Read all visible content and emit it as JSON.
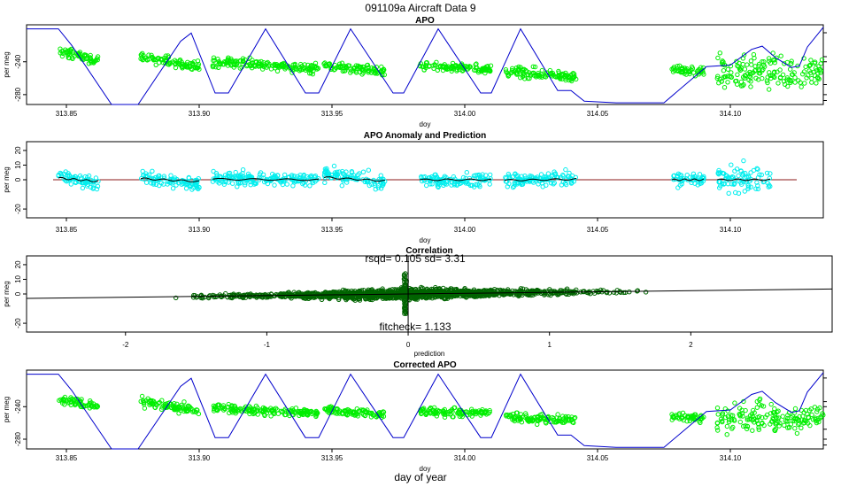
{
  "figure": {
    "title": "091109a   Aircraft Data 9",
    "bottom_label": "day of year"
  },
  "colors": {
    "apo_points": "#00ee00",
    "anomaly_points": "#00eeee",
    "correlation_points": "#006400",
    "altitude_line": "#0000cc",
    "anomaly_line": "#8b1a1a",
    "fit_line": "#000000"
  },
  "chart_data": [
    {
      "id": "apo",
      "type": "scatter",
      "title": "APO",
      "xlabel": "doy",
      "ylabel": "per meg",
      "xlim": [
        313.835,
        314.135
      ],
      "ylim": [
        -292,
        -195
      ],
      "xticks": [
        313.85,
        313.9,
        313.95,
        314.0,
        314.05,
        314.1
      ],
      "xtick_labels": [
        "313.85",
        "313.90",
        "313.95",
        "314.00",
        "314.05",
        "314.10"
      ],
      "yticks": [
        -240,
        -280
      ],
      "ytick_labels": [
        "-240",
        "-280"
      ],
      "right_axis": true,
      "segments": [
        {
          "x": [
            313.847,
            313.862
          ],
          "center": [
            -228,
            -238
          ],
          "spread": 7
        },
        {
          "x": [
            313.878,
            313.9
          ],
          "center": [
            -234,
            -246
          ],
          "spread": 7
        },
        {
          "x": [
            313.905,
            313.945
          ],
          "center": [
            -240,
            -248
          ],
          "spread": 7
        },
        {
          "x": [
            313.947,
            313.97
          ],
          "center": [
            -244,
            -252
          ],
          "spread": 7
        },
        {
          "x": [
            313.983,
            314.01
          ],
          "center": [
            -246,
            -249
          ],
          "spread": 6
        },
        {
          "x": [
            314.015,
            314.042
          ],
          "center": [
            -252,
            -258
          ],
          "spread": 8
        },
        {
          "x": [
            314.078,
            314.09
          ],
          "center": [
            -250,
            -252
          ],
          "spread": 6
        },
        {
          "x": [
            314.095,
            314.135
          ],
          "center": [
            -252,
            -252
          ],
          "spread": 22
        }
      ],
      "altitude_line": [
        [
          313.835,
          -200
        ],
        [
          313.847,
          -200
        ],
        [
          313.852,
          -220
        ],
        [
          313.867,
          -292
        ],
        [
          313.877,
          -292
        ],
        [
          313.893,
          -215
        ],
        [
          313.897,
          -205
        ],
        [
          313.906,
          -278
        ],
        [
          313.911,
          -278
        ],
        [
          313.925,
          -200
        ],
        [
          313.94,
          -278
        ],
        [
          313.945,
          -278
        ],
        [
          313.957,
          -200
        ],
        [
          313.973,
          -278
        ],
        [
          313.977,
          -278
        ],
        [
          313.99,
          -200
        ],
        [
          314.006,
          -278
        ],
        [
          314.01,
          -278
        ],
        [
          314.021,
          -200
        ],
        [
          314.035,
          -275
        ],
        [
          314.04,
          -275
        ],
        [
          314.045,
          -288
        ],
        [
          314.057,
          -290
        ],
        [
          314.075,
          -290
        ],
        [
          314.091,
          -246
        ],
        [
          314.1,
          -244
        ],
        [
          314.108,
          -225
        ],
        [
          314.112,
          -221
        ],
        [
          314.117,
          -235
        ],
        [
          314.123,
          -247
        ],
        [
          314.126,
          -245
        ],
        [
          314.129,
          -222
        ],
        [
          314.135,
          -198
        ]
      ]
    },
    {
      "id": "anomaly",
      "type": "scatter",
      "title": "APO Anomaly and Prediction",
      "xlabel": "doy",
      "ylabel": "per meg",
      "xlim": [
        313.835,
        314.135
      ],
      "ylim": [
        -26,
        26
      ],
      "xticks": [
        313.85,
        313.9,
        313.95,
        314.0,
        314.05,
        314.1
      ],
      "xtick_labels": [
        "313.85",
        "313.90",
        "313.95",
        "314.00",
        "314.05",
        "314.10"
      ],
      "yticks": [
        20,
        10,
        0,
        -20
      ],
      "ytick_labels": [
        "20",
        "10",
        "0",
        "-20"
      ],
      "segments": [
        {
          "x": [
            313.847,
            313.862
          ],
          "center": [
            3,
            -3
          ],
          "spread": 6
        },
        {
          "x": [
            313.878,
            313.9
          ],
          "center": [
            2,
            -3
          ],
          "spread": 6
        },
        {
          "x": [
            313.905,
            313.945
          ],
          "center": [
            1,
            0
          ],
          "spread": 5
        },
        {
          "x": [
            313.947,
            313.97
          ],
          "center": [
            4,
            -2
          ],
          "spread": 6
        },
        {
          "x": [
            313.983,
            314.01
          ],
          "center": [
            0,
            0
          ],
          "spread": 5
        },
        {
          "x": [
            314.015,
            314.042
          ],
          "center": [
            -1,
            1
          ],
          "spread": 6
        },
        {
          "x": [
            314.078,
            314.09
          ],
          "center": [
            0,
            0
          ],
          "spread": 5
        },
        {
          "x": [
            314.095,
            314.115
          ],
          "center": [
            0,
            0
          ],
          "spread": 11
        }
      ]
    },
    {
      "id": "correlation",
      "type": "scatter",
      "title": "Correlation",
      "xlabel": "prediction",
      "ylabel": "per meg",
      "stat_label": "rsqd= 0.105 sd= 3.31",
      "fit_label": "fitcheck= 1.133",
      "xlim": [
        -2.7,
        3.0
      ],
      "ylim": [
        -26,
        26
      ],
      "xticks": [
        -2,
        -1,
        0,
        1,
        2
      ],
      "xtick_labels": [
        "-2",
        "-1",
        "0",
        "1",
        "2"
      ],
      "yticks": [
        20,
        10,
        0,
        -20
      ],
      "ytick_labels": [
        "20",
        "10",
        "0",
        "-20"
      ],
      "slope": 1.133,
      "intercept": 0
    },
    {
      "id": "corrected",
      "type": "scatter",
      "title": "Corrected APO",
      "xlabel": "doy",
      "ylabel": "per meg",
      "xlim": [
        313.835,
        314.135
      ],
      "ylim": [
        -292,
        -195
      ],
      "xticks": [
        313.85,
        313.9,
        313.95,
        314.0,
        314.05,
        314.1
      ],
      "xtick_labels": [
        "313.85",
        "313.90",
        "313.95",
        "314.00",
        "314.05",
        "314.10"
      ],
      "yticks": [
        -240,
        -280
      ],
      "ytick_labels": [
        "-240",
        "-280"
      ],
      "right_axis": true,
      "segments": [
        {
          "x": [
            313.847,
            313.862
          ],
          "center": [
            -230,
            -240
          ],
          "spread": 7
        },
        {
          "x": [
            313.878,
            313.9
          ],
          "center": [
            -234,
            -246
          ],
          "spread": 7
        },
        {
          "x": [
            313.905,
            313.945
          ],
          "center": [
            -242,
            -248
          ],
          "spread": 6
        },
        {
          "x": [
            313.947,
            313.97
          ],
          "center": [
            -244,
            -250
          ],
          "spread": 6
        },
        {
          "x": [
            313.983,
            314.01
          ],
          "center": [
            -246,
            -248
          ],
          "spread": 6
        },
        {
          "x": [
            314.015,
            314.042
          ],
          "center": [
            -252,
            -257
          ],
          "spread": 8
        },
        {
          "x": [
            314.078,
            314.09
          ],
          "center": [
            -252,
            -254
          ],
          "spread": 6
        },
        {
          "x": [
            314.095,
            314.135
          ],
          "center": [
            -254,
            -254
          ],
          "spread": 20
        }
      ]
    }
  ]
}
